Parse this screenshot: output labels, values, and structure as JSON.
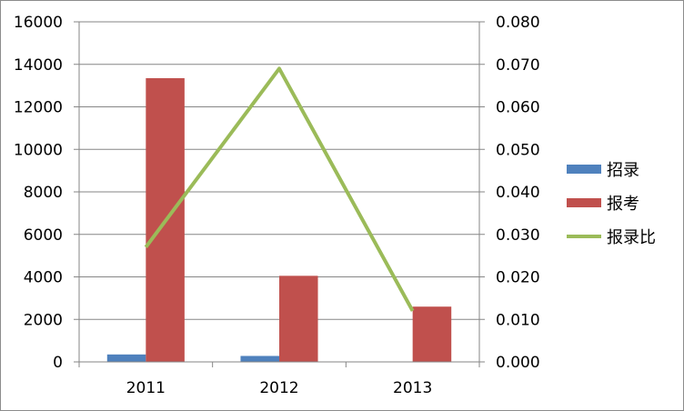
{
  "chart_data": {
    "type": "bar",
    "categories": [
      "2011",
      "2012",
      "2013"
    ],
    "series": [
      {
        "name": "招录",
        "kind": "bar",
        "axis": "left",
        "color": "#4f81bd",
        "values": [
          350,
          280,
          0
        ]
      },
      {
        "name": "报考",
        "kind": "bar",
        "axis": "left",
        "color": "#c0504d",
        "values": [
          13350,
          4050,
          2600
        ]
      },
      {
        "name": "报录比",
        "kind": "line",
        "axis": "right",
        "color": "#9bbb59",
        "values": [
          0.027,
          0.069,
          0.012
        ]
      }
    ],
    "y_left": {
      "min": 0,
      "max": 16000,
      "step": 2000,
      "ticks": [
        "0",
        "2000",
        "4000",
        "6000",
        "8000",
        "10000",
        "12000",
        "14000",
        "16000"
      ]
    },
    "y_right": {
      "min": 0,
      "max": 0.08,
      "step": 0.01,
      "ticks": [
        "0.000",
        "0.010",
        "0.020",
        "0.030",
        "0.040",
        "0.050",
        "0.060",
        "0.070",
        "0.080"
      ]
    },
    "grid": true,
    "legend_position": "right"
  }
}
